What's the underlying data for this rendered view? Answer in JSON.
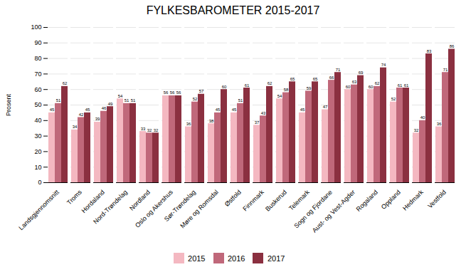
{
  "chart_data": {
    "type": "bar",
    "title": "FYLKESBAROMETER 2015-2017",
    "ylabel": "Prosent",
    "categories": [
      "Landsgjennomsnitt",
      "Troms",
      "Hordaland",
      "Nord-Trøndelag",
      "Nordland",
      "Oslo og Akershus",
      "Sør-Trøndelag",
      "Møre og Romsdal",
      "Østfold",
      "Finnmark",
      "Buskerud",
      "Telemark",
      "Sogn og Fjordane",
      "Aust- og Vest-Agder",
      "Rogaland",
      "Oppland",
      "Hedmark",
      "Vestfold"
    ],
    "series": [
      {
        "name": "2015",
        "color": "#f4b8c1",
        "values": [
          45,
          34,
          39,
          54,
          33,
          56,
          36,
          38,
          45,
          37,
          54,
          45,
          47,
          60,
          60,
          52,
          32,
          36
        ]
      },
      {
        "name": "2016",
        "color": "#c0687a",
        "values": [
          51,
          42,
          46,
          51,
          32,
          56,
          52,
          45,
          51,
          43,
          58,
          59,
          66,
          63,
          62,
          61,
          40,
          71
        ]
      },
      {
        "name": "2017",
        "color": "#8b3040",
        "values": [
          62,
          45,
          49,
          51,
          32,
          56,
          57,
          60,
          61,
          62,
          65,
          65,
          71,
          69,
          74,
          61,
          83,
          86
        ]
      }
    ],
    "ylim": [
      0,
      100
    ],
    "yticks": [
      0,
      10,
      20,
      30,
      40,
      50,
      60,
      70,
      80,
      90,
      100
    ],
    "grid": true,
    "legend": "bottom",
    "data_labels": true
  }
}
